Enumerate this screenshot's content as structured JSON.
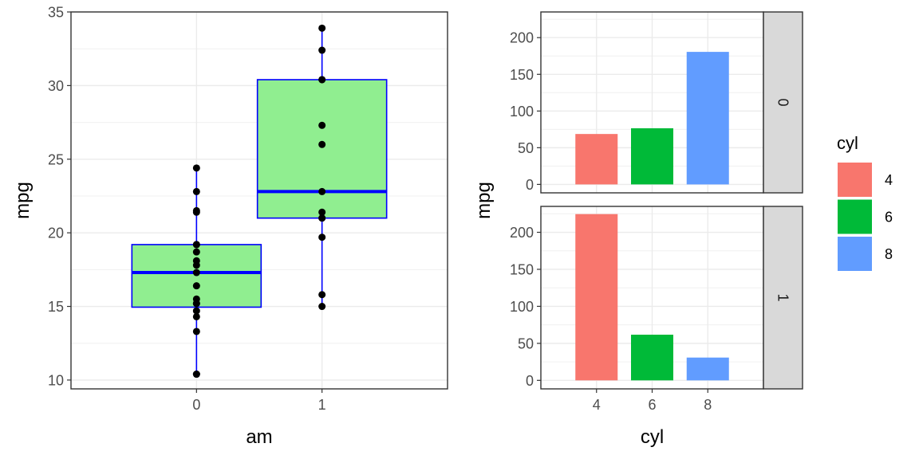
{
  "chart_data": [
    {
      "type": "box",
      "xlabel": "am",
      "ylabel": "mpg",
      "categories": [
        "0",
        "1"
      ],
      "ylim": [
        9.4,
        35
      ],
      "yticks": [
        10,
        15,
        20,
        25,
        30,
        35
      ],
      "grid": true,
      "box_fill": "#90EE90",
      "box_line": "#0000FF",
      "point_color": "#000000",
      "boxes": [
        {
          "category": "0",
          "min": 10.4,
          "q1": 14.95,
          "median": 17.3,
          "q3": 19.2,
          "max": 24.4
        },
        {
          "category": "1",
          "min": 15.0,
          "q1": 21.0,
          "median": 22.8,
          "q3": 30.4,
          "max": 33.9
        }
      ],
      "points": [
        {
          "category": "0",
          "values": [
            21.4,
            18.7,
            18.1,
            14.3,
            24.4,
            22.8,
            19.2,
            17.8,
            16.4,
            17.3,
            15.2,
            10.4,
            10.4,
            14.7,
            21.5,
            15.5,
            15.2,
            13.3,
            19.2
          ]
        },
        {
          "category": "1",
          "values": [
            21.0,
            21.0,
            22.8,
            32.4,
            30.4,
            33.9,
            27.3,
            26.0,
            30.4,
            15.8,
            19.7,
            15.0,
            21.4
          ]
        }
      ]
    },
    {
      "type": "bar",
      "xlabel": "cyl",
      "ylabel": "mpg",
      "categories": [
        "4",
        "6",
        "8"
      ],
      "ylim": [
        -11.5,
        235
      ],
      "yticks": [
        0,
        50,
        100,
        150,
        200
      ],
      "grid": true,
      "facets": [
        {
          "label": "0",
          "values": [
            68.7,
            76.5,
            180.6
          ]
        },
        {
          "label": "1",
          "values": [
            224.6,
            61.7,
            30.8
          ]
        }
      ],
      "legend": {
        "title": "cyl",
        "position": "right",
        "items": [
          {
            "label": "4",
            "color": "#F8766D"
          },
          {
            "label": "6",
            "color": "#00BA38"
          },
          {
            "label": "8",
            "color": "#619CFF"
          }
        ]
      }
    }
  ]
}
